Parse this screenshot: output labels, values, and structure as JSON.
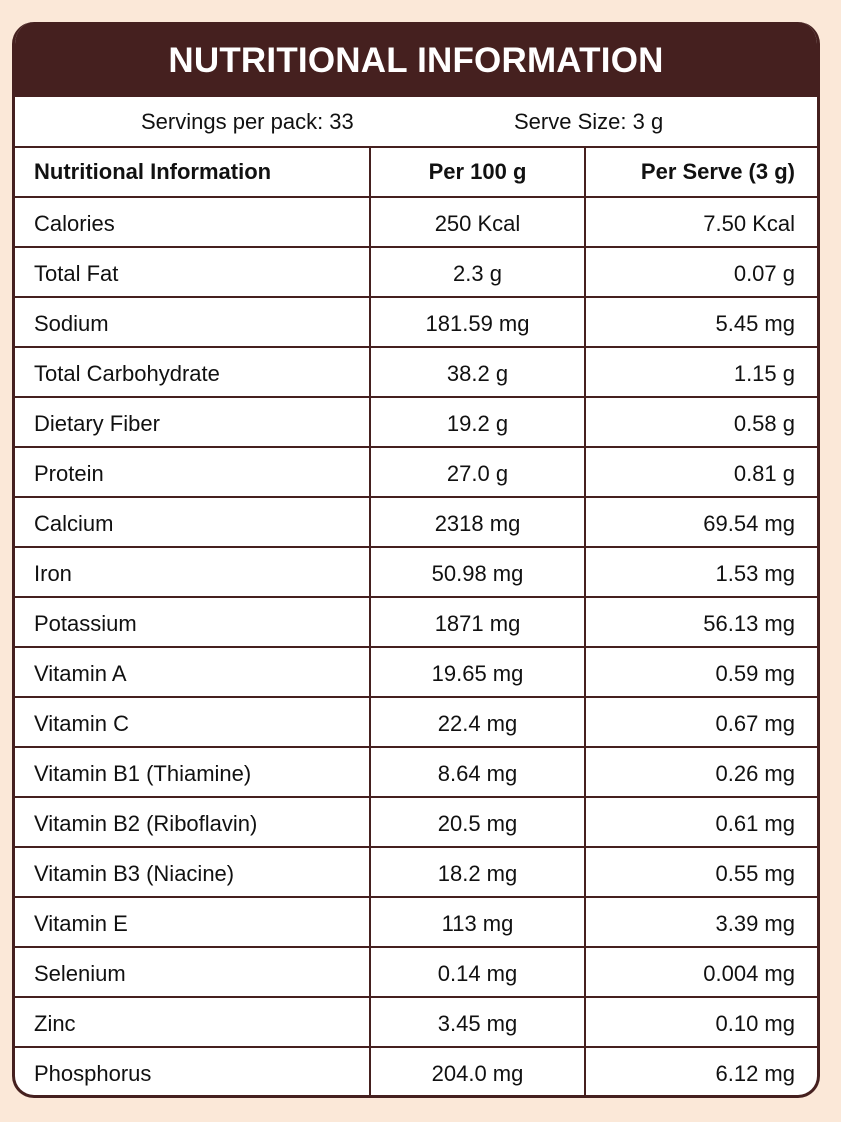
{
  "title": "NUTRITIONAL INFORMATION",
  "servings": {
    "per_pack": "Servings per pack: 33",
    "serve_size": "Serve Size: 3 g"
  },
  "columns": [
    "Nutritional Information",
    "Per 100 g",
    "Per Serve (3 g)"
  ],
  "rows": [
    [
      "Calories",
      "250 Kcal",
      "7.50 Kcal"
    ],
    [
      "Total Fat",
      "2.3 g",
      "0.07 g"
    ],
    [
      "Sodium",
      "181.59 mg",
      "5.45 mg"
    ],
    [
      "Total Carbohydrate",
      "38.2 g",
      "1.15 g"
    ],
    [
      "Dietary Fiber",
      "19.2 g",
      "0.58 g"
    ],
    [
      "Protein",
      "27.0 g",
      "0.81 g"
    ],
    [
      "Calcium",
      "2318 mg",
      "69.54 mg"
    ],
    [
      "Iron",
      "50.98 mg",
      "1.53 mg"
    ],
    [
      "Potassium",
      "1871 mg",
      "56.13 mg"
    ],
    [
      "Vitamin A",
      "19.65 mg",
      "0.59 mg"
    ],
    [
      "Vitamin C",
      "22.4 mg",
      "0.67 mg"
    ],
    [
      "Vitamin B1 (Thiamine)",
      "8.64 mg",
      "0.26 mg"
    ],
    [
      "Vitamin B2 (Riboflavin)",
      "20.5 mg",
      "0.61 mg"
    ],
    [
      "Vitamin B3 (Niacine)",
      "18.2 mg",
      "0.55 mg"
    ],
    [
      "Vitamin E",
      "113 mg",
      "3.39 mg"
    ],
    [
      "Selenium",
      "0.14 mg",
      "0.004 mg"
    ],
    [
      "Zinc",
      "3.45 mg",
      "0.10 mg"
    ],
    [
      "Phosphorus",
      "204.0 mg",
      "6.12 mg"
    ]
  ],
  "colors": {
    "brand": "#45201f",
    "background": "#fbe8d8"
  }
}
